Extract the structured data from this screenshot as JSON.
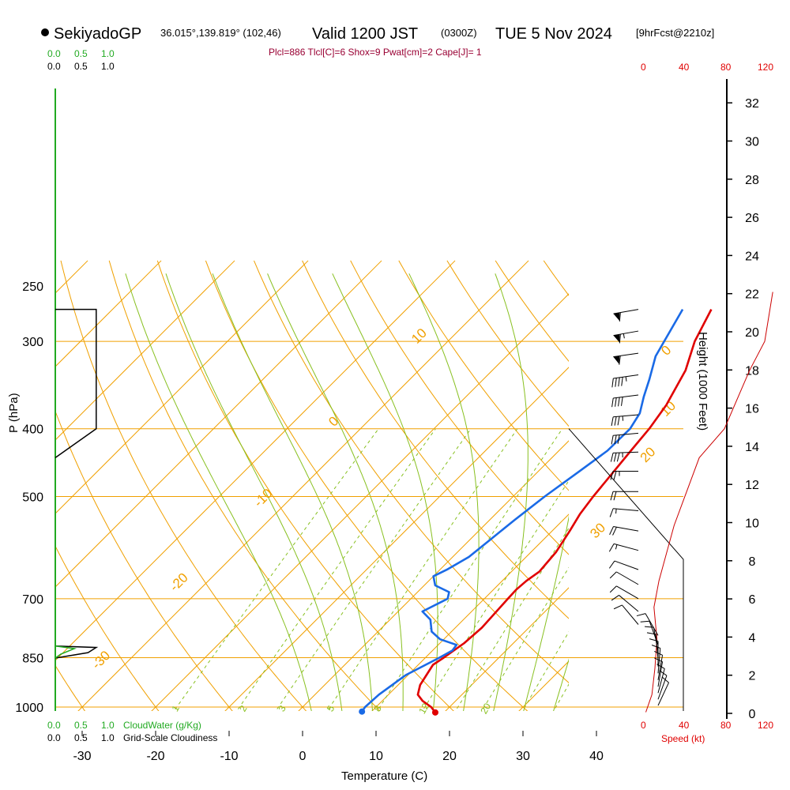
{
  "header": {
    "station": "SekiyadoGP",
    "location": "36.015°,139.819° (102,46)",
    "valid_main": "Valid 1200 JST",
    "valid_z": "(0300Z)",
    "valid_date": "TUE 5 Nov 2024",
    "forecast": "[9hrFcst@2210z]",
    "indices": "Plcl=886 Tlcl[C]=6 Shox=9 Pwat[cm]=2 Cape[J]= 1"
  },
  "legends": {
    "cloudwater_label": "CloudWater (g/Kg)",
    "cloudiness_label": "Grid-Scale Cloudiness",
    "scale_values": [
      "0.0",
      "0.5",
      "1.0"
    ],
    "speed_label": "Speed (kt)",
    "speed_ticks": [
      "0",
      "40",
      "80",
      "120"
    ]
  },
  "colors": {
    "isotherm": "#f0a000",
    "mixing_ratio": "#88c020",
    "temperature": "#e00000",
    "dewpoint": "#1a6ae6",
    "cloudwater": "#22aa22",
    "speed": "#cc0000",
    "index_text": "#990033"
  },
  "chart_data": {
    "type": "line",
    "title": "SekiyadoGP Valid 1200 JST (0300Z) TUE 5 Nov 2024",
    "xlabel": "Temperature (C)",
    "ylabel": "P (hPa)",
    "y2label": "Height (1000 Feet)",
    "xlim": [
      -35,
      45
    ],
    "x_ticks": [
      -30,
      -20,
      -10,
      0,
      10,
      20,
      30,
      40
    ],
    "p_ticks": [
      250,
      300,
      400,
      500,
      700,
      850,
      1000
    ],
    "height_ticks": [
      0,
      2,
      4,
      6,
      8,
      10,
      12,
      14,
      16,
      18,
      20,
      22,
      24,
      26,
      28,
      30,
      32
    ],
    "adiabat_labels": [
      {
        "text": "10",
        "t": -33.8,
        "p": 303
      },
      {
        "text": "0",
        "t": -33.8,
        "p": 398
      },
      {
        "text": "-10",
        "t": -33.0,
        "p": 519
      },
      {
        "text": "-20",
        "t": -33.0,
        "p": 685
      },
      {
        "text": "-30",
        "t": -33.0,
        "p": 885
      },
      {
        "text": "0",
        "t": 1.8,
        "p": 315
      },
      {
        "text": "10",
        "t": 10.0,
        "p": 385
      },
      {
        "text": "20",
        "t": 13.5,
        "p": 448
      },
      {
        "text": "30",
        "t": 17.0,
        "p": 575
      }
    ],
    "mixing_ratio_labels": [
      {
        "text": "1",
        "t": -16.5,
        "p": 1010
      },
      {
        "text": "2",
        "t": -7.3,
        "p": 1010
      },
      {
        "text": "3",
        "t": -2.0,
        "p": 1010
      },
      {
        "text": "5",
        "t": 4.6,
        "p": 1010
      },
      {
        "text": "8",
        "t": 11.0,
        "p": 1010
      },
      {
        "text": "12",
        "t": 17.3,
        "p": 1010
      },
      {
        "text": "20",
        "t": 25.7,
        "p": 1010
      }
    ],
    "series": [
      {
        "name": "Temperature",
        "points": [
          [
            18.8,
            1018
          ],
          [
            17.5,
            1000
          ],
          [
            15.5,
            980
          ],
          [
            14.0,
            960
          ],
          [
            13.0,
            930
          ],
          [
            12.5,
            900
          ],
          [
            12.0,
            870
          ],
          [
            12.5,
            850
          ],
          [
            13.3,
            810
          ],
          [
            13.6,
            770
          ],
          [
            13.2,
            700
          ],
          [
            13.1,
            680
          ],
          [
            13.3,
            660
          ],
          [
            13.8,
            640
          ],
          [
            13.4,
            600
          ],
          [
            12.4,
            560
          ],
          [
            11.5,
            530
          ],
          [
            10.9,
            500
          ],
          [
            10.3,
            460
          ],
          [
            9.8,
            430
          ],
          [
            9.3,
            400
          ],
          [
            8.4,
            370
          ],
          [
            6.3,
            330
          ],
          [
            3.6,
            300
          ],
          [
            1.5,
            270
          ]
        ]
      },
      {
        "name": "Dewpoint",
        "points": [
          [
            8.7,
            1015
          ],
          [
            8.5,
            1000
          ],
          [
            8.7,
            960
          ],
          [
            9.7,
            900
          ],
          [
            11.9,
            850
          ],
          [
            12.7,
            830
          ],
          [
            12.5,
            815
          ],
          [
            9.5,
            800
          ],
          [
            7.3,
            780
          ],
          [
            5.5,
            750
          ],
          [
            3.3,
            730
          ],
          [
            5.0,
            700
          ],
          [
            4.3,
            685
          ],
          [
            1.5,
            670
          ],
          [
            0.0,
            650
          ],
          [
            1.0,
            635
          ],
          [
            2.2,
            610
          ],
          [
            2.7,
            580
          ],
          [
            3.4,
            540
          ],
          [
            4.3,
            500
          ],
          [
            5.6,
            460
          ],
          [
            6.6,
            430
          ],
          [
            6.7,
            400
          ],
          [
            5.9,
            380
          ],
          [
            4.2,
            360
          ],
          [
            2.6,
            340
          ],
          [
            0.3,
            315
          ],
          [
            -2.4,
            270
          ]
        ]
      }
    ],
    "cloudiness_profile": [
      [
        0.0,
        270
      ],
      [
        0.75,
        270
      ],
      [
        0.75,
        400
      ],
      [
        0.0,
        440
      ]
    ],
    "cloudiness_low": [
      [
        0.0,
        818
      ],
      [
        0.75,
        822
      ],
      [
        0.6,
        836
      ],
      [
        0.0,
        851
      ]
    ],
    "cloudwater_low": [
      [
        0.0,
        818
      ],
      [
        0.35,
        825
      ],
      [
        0.1,
        840
      ],
      [
        0.0,
        851
      ]
    ],
    "height_profile": [
      [
        2,
        1017
      ],
      [
        8,
        960
      ],
      [
        11,
        880
      ],
      [
        13,
        800
      ],
      [
        10,
        720
      ],
      [
        15,
        660
      ],
      [
        30,
        550
      ],
      [
        55,
        440
      ],
      [
        80,
        400
      ],
      [
        105,
        330
      ],
      [
        120,
        300
      ],
      [
        128,
        255
      ]
    ],
    "wind_barbs": [
      {
        "p": 270,
        "speed": 60,
        "dir": 260
      },
      {
        "p": 290,
        "speed": 65,
        "dir": 260
      },
      {
        "p": 312,
        "speed": 60,
        "dir": 262
      },
      {
        "p": 335,
        "speed": 45,
        "dir": 262
      },
      {
        "p": 358,
        "speed": 40,
        "dir": 263
      },
      {
        "p": 382,
        "speed": 35,
        "dir": 265
      },
      {
        "p": 406,
        "speed": 30,
        "dir": 265
      },
      {
        "p": 432,
        "speed": 35,
        "dir": 268
      },
      {
        "p": 460,
        "speed": 25,
        "dir": 270
      },
      {
        "p": 492,
        "speed": 20,
        "dir": 270
      },
      {
        "p": 524,
        "speed": 15,
        "dir": 275
      },
      {
        "p": 560,
        "speed": 20,
        "dir": 280
      },
      {
        "p": 597,
        "speed": 15,
        "dir": 285
      },
      {
        "p": 636,
        "speed": 10,
        "dir": 290
      },
      {
        "p": 668,
        "speed": 10,
        "dir": 300
      },
      {
        "p": 700,
        "speed": 8,
        "dir": 300
      },
      {
        "p": 730,
        "speed": 8,
        "dir": 310
      },
      {
        "p": 762,
        "speed": 10,
        "dir": 320
      },
      {
        "p": 790,
        "speed": 10,
        "dir": 330
      },
      {
        "p": 815,
        "speed": 8,
        "dir": 340
      },
      {
        "p": 835,
        "speed": 8,
        "dir": 350
      },
      {
        "p": 855,
        "speed": 10,
        "dir": 355
      },
      {
        "p": 875,
        "speed": 10,
        "dir": 0
      },
      {
        "p": 895,
        "speed": 10,
        "dir": 5
      },
      {
        "p": 915,
        "speed": 12,
        "dir": 10
      },
      {
        "p": 935,
        "speed": 12,
        "dir": 10
      },
      {
        "p": 955,
        "speed": 10,
        "dir": 15
      },
      {
        "p": 975,
        "speed": 10,
        "dir": 20
      },
      {
        "p": 995,
        "speed": 8,
        "dir": 25
      }
    ]
  }
}
